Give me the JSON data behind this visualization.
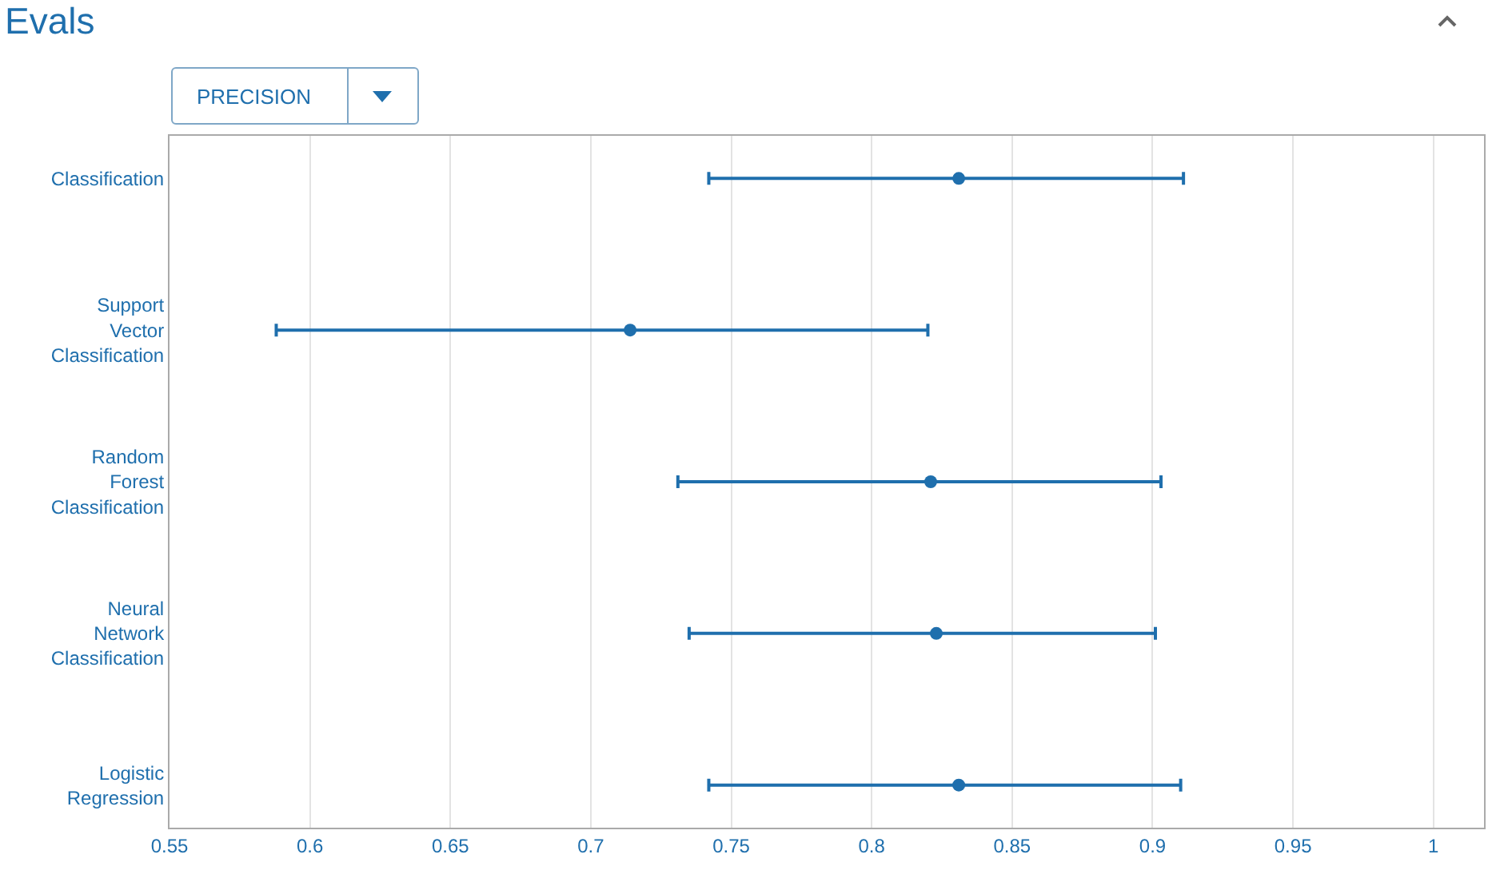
{
  "chart_data": {
    "type": "scatter",
    "title": "Evals",
    "annotations": [
      "PRECISION"
    ],
    "categories": [
      "Classification",
      "Support Vector Classification",
      "Random Forest Classification",
      "Neural Network Classification",
      "Logistic Regression"
    ],
    "orientation": "horizontal",
    "series": [
      {
        "color": "#1f6fad",
        "values": [
          0.831,
          0.714,
          0.821,
          0.823,
          0.831
        ],
        "errors": [
          [
            0.742,
            0.911
          ],
          [
            0.588,
            0.82
          ],
          [
            0.731,
            0.903
          ],
          [
            0.735,
            0.901
          ],
          [
            0.742,
            0.91
          ]
        ]
      }
    ],
    "xlim": [
      0.55,
      1.018
    ],
    "xticks": [
      0.55,
      0.6,
      0.65,
      0.7,
      0.75,
      0.8,
      0.85,
      0.9,
      0.95,
      1
    ],
    "grid": "x",
    "marker": "circle"
  }
}
